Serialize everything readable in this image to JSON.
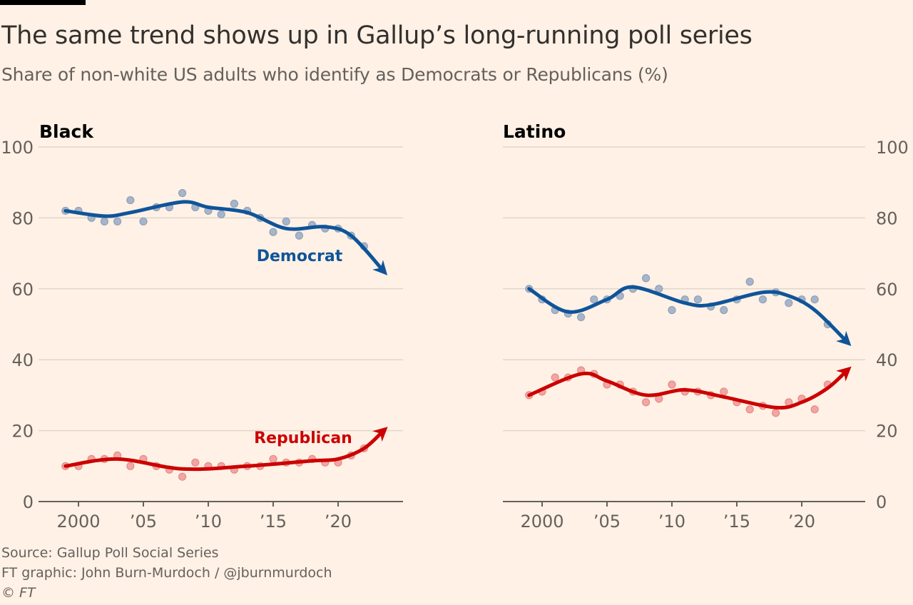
{
  "title": "The same trend shows up in Gallup’s long-running poll series",
  "subtitle": "Share of non-white US adults who identify as Democrats or Republicans (%)",
  "footer": {
    "source": "Source: Gallup Poll Social Series",
    "credit": "FT graphic: John Burn-Murdoch / @jburnmurdoch",
    "copyright": "© FT"
  },
  "colors": {
    "background": "#fff1e5",
    "democrat": "#0f5499",
    "republican": "#cc0000",
    "democrat_dots": "#a7b5c9",
    "republican_dots": "#f1a6a3",
    "text": "#66605c"
  },
  "chart_data": [
    {
      "type": "scatter",
      "panel_title": "Black",
      "ylim": [
        0,
        100
      ],
      "yticks": [
        "0",
        "20",
        "40",
        "60",
        "80",
        "100"
      ],
      "xticks": [
        {
          "year": 2000,
          "label": "2000"
        },
        {
          "year": 2005,
          "label": "’05"
        },
        {
          "year": 2010,
          "label": "’10"
        },
        {
          "year": 2015,
          "label": "’15"
        },
        {
          "year": 2020,
          "label": "’20"
        }
      ],
      "grid": true,
      "years": [
        1999,
        2000,
        2001,
        2002,
        2003,
        2004,
        2005,
        2006,
        2007,
        2008,
        2009,
        2010,
        2011,
        2012,
        2013,
        2014,
        2015,
        2016,
        2017,
        2018,
        2019,
        2020,
        2021,
        2022
      ],
      "series": [
        {
          "name": "Democrat",
          "color": "#0f5499",
          "values": [
            82,
            82,
            80,
            79,
            79,
            85,
            79,
            83,
            83,
            87,
            83,
            82,
            81,
            84,
            82,
            80,
            76,
            79,
            75,
            78,
            77,
            77,
            75,
            72
          ],
          "trend": [
            [
              1999,
              82
            ],
            [
              2002,
              80.5
            ],
            [
              2004,
              81.5
            ],
            [
              2008,
              84.5
            ],
            [
              2010,
              83
            ],
            [
              2013,
              81.5
            ],
            [
              2016,
              77
            ],
            [
              2019,
              77.5
            ],
            [
              2021,
              75
            ],
            [
              2023.5,
              65
            ]
          ]
        },
        {
          "name": "Republican",
          "color": "#cc0000",
          "values": [
            10,
            10,
            12,
            12,
            13,
            10,
            12,
            10,
            9,
            7,
            11,
            10,
            10,
            9,
            10,
            10,
            12,
            11,
            11,
            12,
            11,
            11,
            13,
            15
          ],
          "trend": [
            [
              1999,
              10
            ],
            [
              2003,
              12
            ],
            [
              2008,
              9.2
            ],
            [
              2013,
              10
            ],
            [
              2018,
              11.5
            ],
            [
              2020,
              12
            ],
            [
              2022,
              15
            ],
            [
              2023.5,
              20
            ]
          ]
        }
      ]
    },
    {
      "type": "scatter",
      "panel_title": "Latino",
      "ylim": [
        0,
        100
      ],
      "yticks": [
        "0",
        "20",
        "40",
        "60",
        "80",
        "100"
      ],
      "xticks": [
        {
          "year": 2000,
          "label": "2000"
        },
        {
          "year": 2005,
          "label": "’05"
        },
        {
          "year": 2010,
          "label": "’10"
        },
        {
          "year": 2015,
          "label": "’15"
        },
        {
          "year": 2020,
          "label": "’20"
        }
      ],
      "grid": true,
      "years": [
        1999,
        2000,
        2001,
        2002,
        2003,
        2004,
        2005,
        2006,
        2007,
        2008,
        2009,
        2010,
        2011,
        2012,
        2013,
        2014,
        2015,
        2016,
        2017,
        2018,
        2019,
        2020,
        2021,
        2022
      ],
      "series": [
        {
          "name": "Democrat",
          "color": "#0f5499",
          "values": [
            60,
            57,
            54,
            53,
            52,
            57,
            57,
            58,
            60,
            63,
            60,
            54,
            57,
            57,
            55,
            54,
            57,
            62,
            57,
            59,
            56,
            57,
            57,
            50
          ],
          "trend": [
            [
              1999,
              60
            ],
            [
              2002,
              53.5
            ],
            [
              2005,
              57
            ],
            [
              2007,
              60.5
            ],
            [
              2011,
              56
            ],
            [
              2013,
              55.5
            ],
            [
              2017,
              59
            ],
            [
              2019,
              58
            ],
            [
              2021,
              54
            ],
            [
              2023.5,
              45
            ]
          ]
        },
        {
          "name": "Republican",
          "color": "#cc0000",
          "values": [
            30,
            31,
            35,
            35,
            37,
            36,
            33,
            33,
            31,
            28,
            29,
            33,
            31,
            31,
            30,
            31,
            28,
            26,
            27,
            25,
            28,
            29,
            26,
            33
          ],
          "trend": [
            [
              1999,
              30
            ],
            [
              2003,
              36
            ],
            [
              2005,
              34
            ],
            [
              2008,
              30
            ],
            [
              2011,
              31.5
            ],
            [
              2014,
              29.5
            ],
            [
              2018,
              26.5
            ],
            [
              2020,
              28
            ],
            [
              2022,
              32
            ],
            [
              2023.5,
              37
            ]
          ]
        }
      ]
    }
  ]
}
